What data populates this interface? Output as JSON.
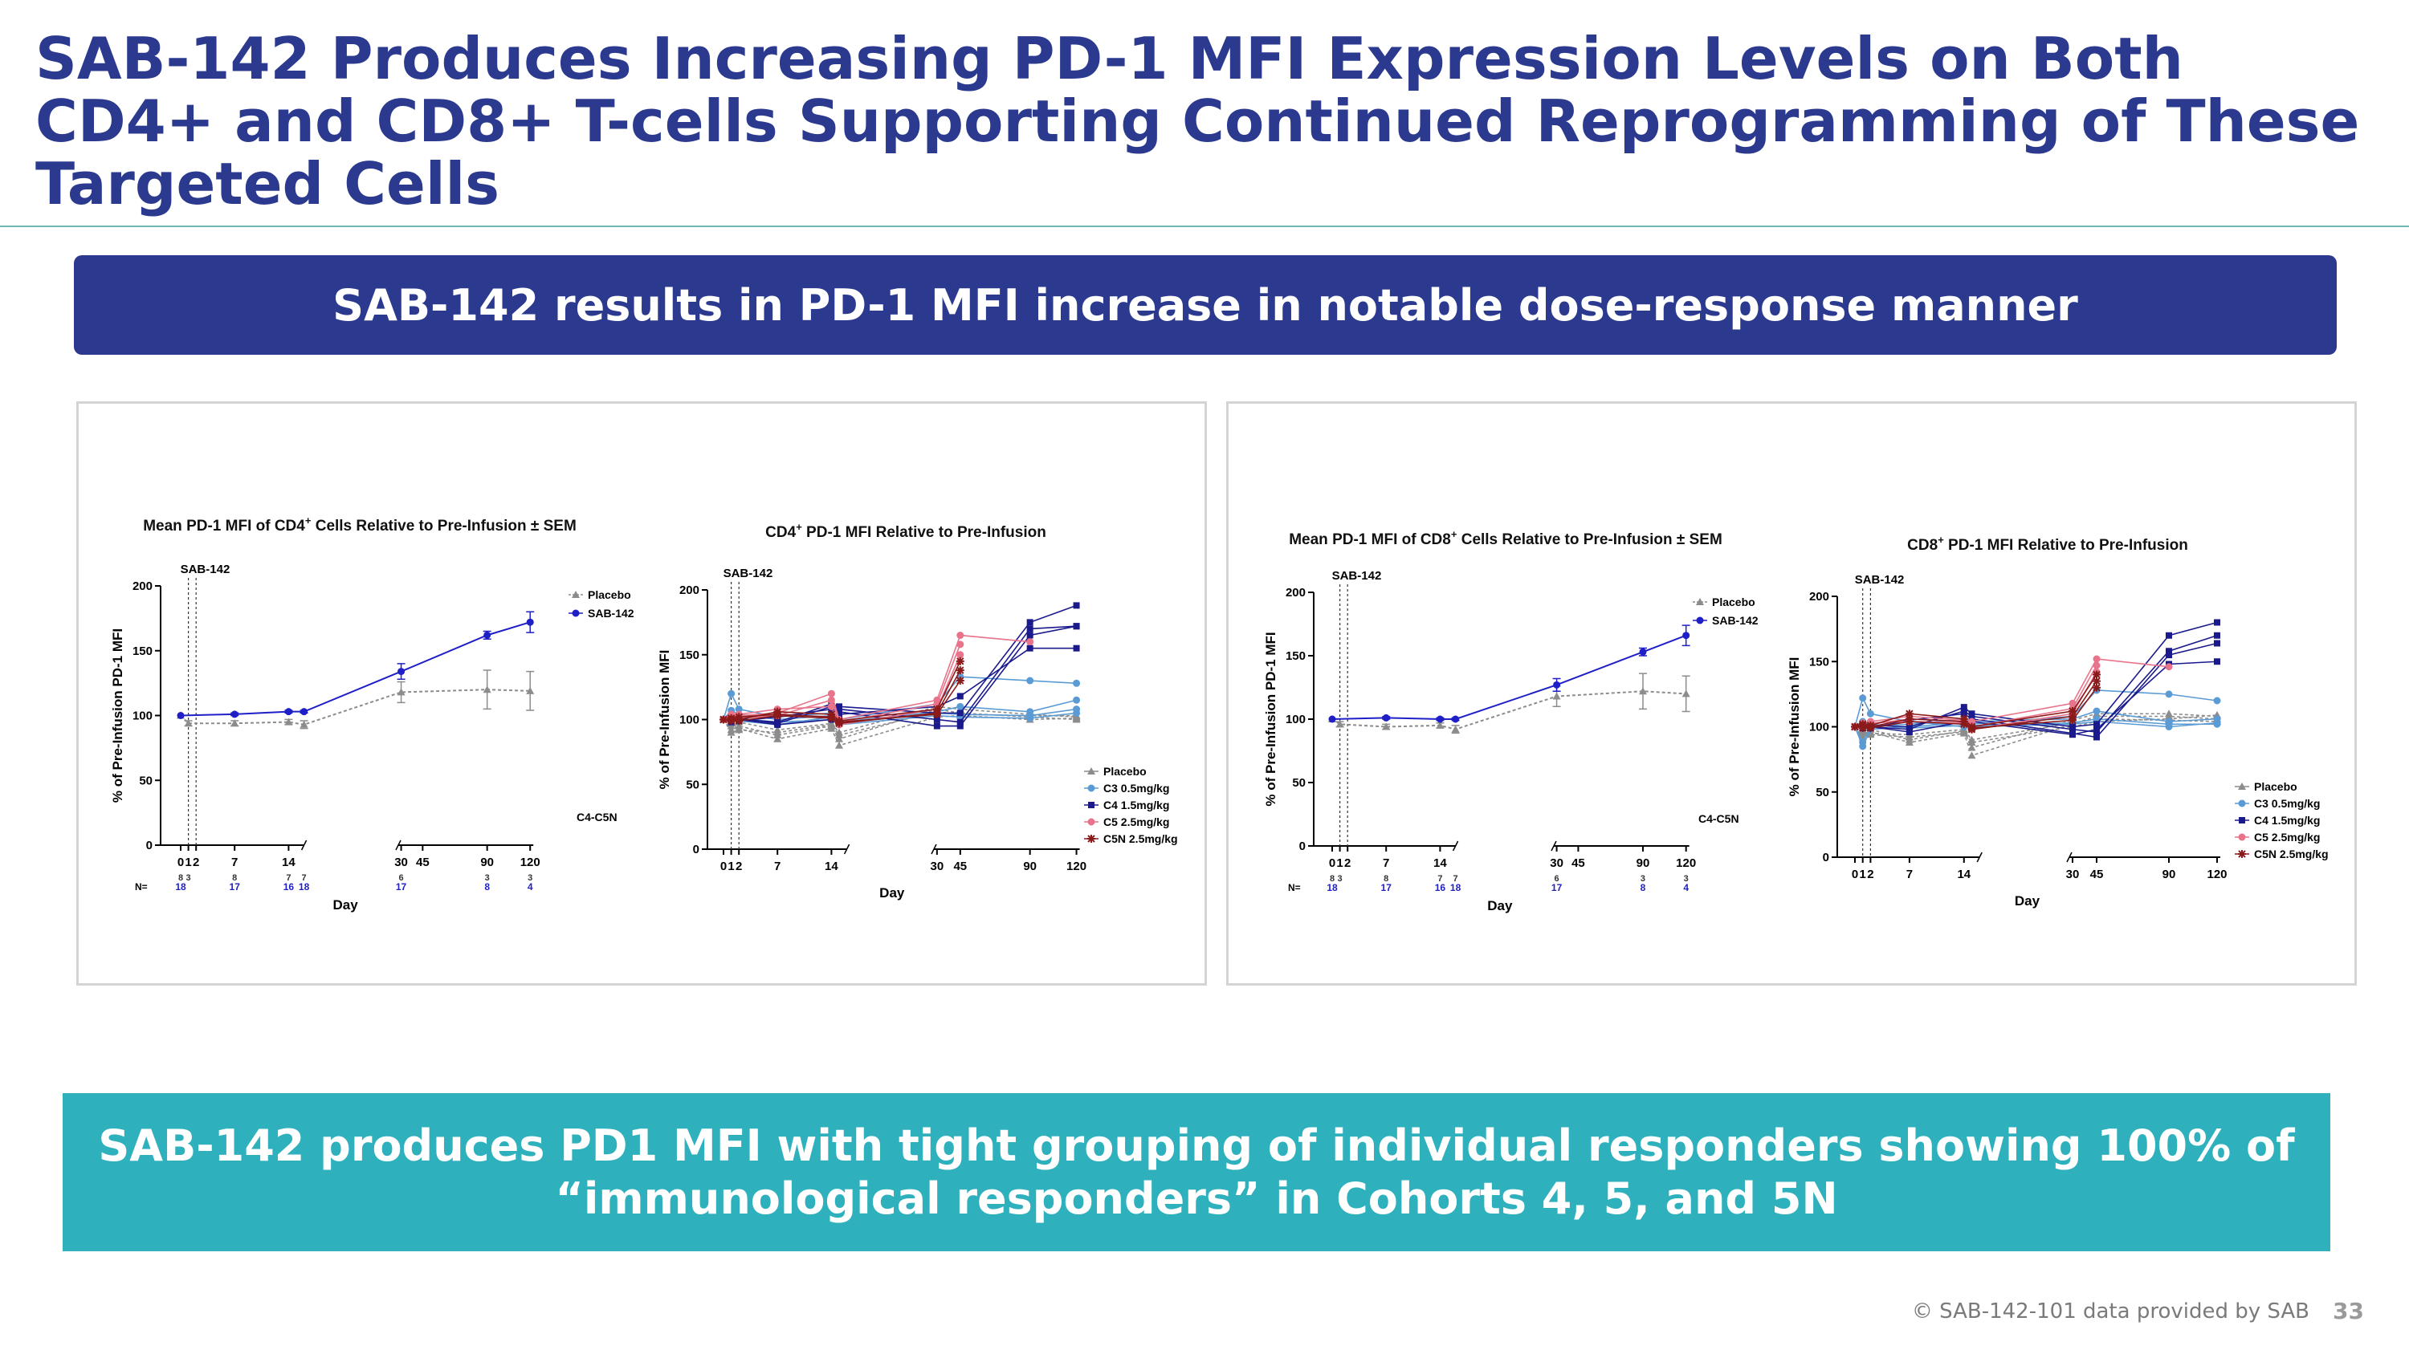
{
  "page": {
    "title": "SAB-142 Produces Increasing PD-1 MFI Expression Levels on Both CD4+ and CD8+ T-cells Supporting Continued Reprogramming of These Targeted Cells",
    "banner_top": "SAB-142 results in PD-1 MFI increase in notable dose-response manner",
    "banner_bottom_line1": "SAB-142 produces PD1 MFI with tight grouping of individual responders showing 100% of",
    "banner_bottom_line2": "“immunological responders” in Cohorts 4, 5, and 5N",
    "footer": "© SAB-142-101 data provided by SAB",
    "page_number": "33"
  },
  "colors": {
    "title": "#2b3a8f",
    "banner_top_bg": "#2b3a8f",
    "banner_bottom_bg": "#2fb0bd",
    "placebo": "#8c8c8c",
    "sab142": "#1f1fc8",
    "c3": "#5b9bd5",
    "c4": "#1a1a8c",
    "c5": "#e8738a",
    "c5n": "#8b1a1a"
  },
  "chart_data": [
    {
      "id": "cd4-mean",
      "type": "line",
      "title": "Mean PD-1 MFI of CD4",
      "title_sup": "+",
      "title_suffix": " Cells Relative to Pre-Infusion ± SEM",
      "xlabel": "Day",
      "ylabel": "% of Pre-Infusion PD-1 MFI",
      "ylim": [
        0,
        200
      ],
      "yticks": [
        0,
        50,
        100,
        150,
        200
      ],
      "x_ticks": [
        0,
        1,
        2,
        7,
        14,
        30,
        45,
        90,
        120
      ],
      "dosing_label": "SAB-142",
      "annotation": "C4-C5N",
      "n_label": "N=",
      "n_placebo": [
        "8",
        "3",
        "8",
        "7",
        "7",
        "6",
        "3",
        "3"
      ],
      "n_sab": [
        "18",
        "17",
        "16",
        "18",
        "17",
        "8",
        "4"
      ],
      "series": [
        {
          "name": "Placebo",
          "color": "#8c8c8c",
          "dashed": true,
          "marker": "triangle",
          "x": [
            0,
            1,
            7,
            14,
            16,
            30,
            90,
            120
          ],
          "y": [
            100,
            94,
            94,
            95,
            93,
            118,
            120,
            119
          ],
          "err": [
            0,
            2,
            2,
            2,
            3,
            8,
            15,
            15
          ]
        },
        {
          "name": "SAB-142",
          "color": "#1f1fc8",
          "dashed": false,
          "marker": "circle",
          "x": [
            0,
            7,
            14,
            16,
            30,
            90,
            120
          ],
          "y": [
            100,
            101,
            103,
            103,
            134,
            162,
            172
          ],
          "err": [
            0,
            1,
            1,
            1,
            6,
            3,
            8
          ]
        }
      ]
    },
    {
      "id": "cd4-individual",
      "type": "line",
      "title": "CD4",
      "title_sup": "+",
      "title_suffix": " PD-1 MFI Relative to Pre-Infusion",
      "xlabel": "Day",
      "ylabel": "% of Pre-Infusion MFI",
      "ylim": [
        0,
        200
      ],
      "yticks": [
        0,
        50,
        100,
        150,
        200
      ],
      "x_ticks": [
        0,
        1,
        2,
        7,
        14,
        30,
        45,
        90,
        120
      ],
      "dosing_label": "SAB-142",
      "legend": [
        {
          "name": "Placebo",
          "color": "#8c8c8c",
          "marker": "triangle"
        },
        {
          "name": "C3 0.5mg/kg",
          "color": "#5b9bd5",
          "marker": "circle"
        },
        {
          "name": "C4 1.5mg/kg",
          "color": "#1a1a8c",
          "marker": "square"
        },
        {
          "name": "C5 2.5mg/kg",
          "color": "#e8738a",
          "marker": "circle"
        },
        {
          "name": "C5N 2.5mg/kg",
          "color": "#8b1a1a",
          "marker": "star"
        }
      ],
      "days": [
        0,
        1,
        2,
        7,
        14,
        15,
        30,
        31,
        45,
        90,
        120
      ],
      "groups": [
        {
          "name": "Placebo",
          "color": "#8c8c8c",
          "dashed": true,
          "lines": [
            [
              100,
              92,
              95,
              88,
              95,
              85,
              108,
              null,
              105,
              102,
              100
            ],
            [
              100,
              95,
              98,
              92,
              97,
              90,
              110,
              null,
              108,
              104,
              102
            ],
            [
              100,
              97,
              93,
              85,
              93,
              80,
              102,
              null,
              103,
              100,
              101
            ],
            [
              100,
              90,
              92,
              90,
              96,
              88,
              106,
              null,
              104,
              103,
              103
            ]
          ]
        },
        {
          "name": "C3 0.5mg/kg",
          "color": "#5b9bd5",
          "dashed": false,
          "lines": [
            [
              100,
              120,
              108,
              102,
              105,
              100,
              112,
              null,
              133,
              130,
              128
            ],
            [
              100,
              107,
              104,
              100,
              103,
              98,
              106,
              null,
              110,
              106,
              115
            ],
            [
              100,
              103,
              99,
              96,
              102,
              97,
              105,
              null,
              104,
              103,
              108
            ],
            [
              100,
              98,
              101,
              98,
              100,
              96,
              103,
              null,
              102,
              101,
              105
            ]
          ]
        },
        {
          "name": "C4 1.5mg/kg",
          "color": "#1a1a8c",
          "dashed": false,
          "lines": [
            [
              100,
              102,
              100,
              98,
              112,
              110,
              105,
              null,
              105,
              175,
              188
            ],
            [
              100,
              99,
              101,
              97,
              110,
              108,
              100,
              null,
              98,
              170,
              172
            ],
            [
              100,
              101,
              99,
              102,
              108,
              106,
              95,
              null,
              95,
              165,
              172
            ],
            [
              100,
              98,
              100,
              96,
              100,
              104,
              110,
              null,
              118,
              155,
              155
            ]
          ]
        },
        {
          "name": "C5 2.5mg/kg",
          "color": "#e8738a",
          "dashed": false,
          "lines": [
            [
              100,
              104,
              103,
              105,
              120,
              100,
              115,
              null,
              165,
              160,
              null
            ],
            [
              100,
              102,
              101,
              103,
              115,
              98,
              112,
              null,
              158,
              null,
              null
            ],
            [
              100,
              101,
              104,
              108,
              110,
              96,
              108,
              null,
              150,
              null,
              null
            ]
          ]
        },
        {
          "name": "C5N 2.5mg/kg",
          "color": "#8b1a1a",
          "dashed": false,
          "lines": [
            [
              100,
              101,
              100,
              106,
              104,
              99,
              108,
              null,
              145,
              null,
              null
            ],
            [
              100,
              99,
              102,
              104,
              102,
              97,
              105,
              null,
              138,
              null,
              null
            ],
            [
              100,
              100,
              99,
              103,
              101,
              98,
              104,
              null,
              130,
              null,
              null
            ]
          ]
        }
      ]
    },
    {
      "id": "cd8-mean",
      "type": "line",
      "title": "Mean PD-1 MFI of CD8",
      "title_sup": "+",
      "title_suffix": " Cells Relative to Pre-Infusion ± SEM",
      "xlabel": "Day",
      "ylabel": "% of Pre-Infusion PD-1 MFI",
      "ylim": [
        0,
        200
      ],
      "yticks": [
        0,
        50,
        100,
        150,
        200
      ],
      "x_ticks": [
        0,
        1,
        2,
        7,
        14,
        30,
        45,
        90,
        120
      ],
      "dosing_label": "SAB-142",
      "annotation": "C4-C5N",
      "n_label": "N=",
      "n_placebo": [
        "8",
        "3",
        "8",
        "7",
        "7",
        "6",
        "3",
        "3"
      ],
      "n_sab": [
        "18",
        "17",
        "16",
        "18",
        "17",
        "8",
        "4"
      ],
      "series": [
        {
          "name": "Placebo",
          "color": "#8c8c8c",
          "dashed": true,
          "marker": "triangle",
          "x": [
            0,
            1,
            7,
            14,
            16,
            30,
            90,
            120
          ],
          "y": [
            100,
            96,
            94,
            95,
            92,
            118,
            122,
            120
          ],
          "err": [
            0,
            2,
            2,
            2,
            3,
            8,
            14,
            14
          ]
        },
        {
          "name": "SAB-142",
          "color": "#1f1fc8",
          "dashed": false,
          "marker": "circle",
          "x": [
            0,
            7,
            14,
            16,
            30,
            90,
            120
          ],
          "y": [
            100,
            101,
            100,
            100,
            127,
            153,
            166
          ],
          "err": [
            0,
            1,
            1,
            1,
            5,
            3,
            8
          ]
        }
      ]
    },
    {
      "id": "cd8-individual",
      "type": "line",
      "title": "CD8",
      "title_sup": "+",
      "title_suffix": " PD-1 MFI Relative to Pre-Infusion",
      "xlabel": "Day",
      "ylabel": "% of Pre-Infusion MFI",
      "ylim": [
        0,
        200
      ],
      "yticks": [
        0,
        50,
        100,
        150,
        200
      ],
      "x_ticks": [
        0,
        1,
        2,
        7,
        14,
        30,
        45,
        90,
        120
      ],
      "dosing_label": "SAB-142",
      "legend": [
        {
          "name": "Placebo",
          "color": "#8c8c8c",
          "marker": "triangle"
        },
        {
          "name": "C3 0.5mg/kg",
          "color": "#5b9bd5",
          "marker": "circle"
        },
        {
          "name": "C4 1.5mg/kg",
          "color": "#1a1a8c",
          "marker": "square"
        },
        {
          "name": "C5 2.5mg/kg",
          "color": "#e8738a",
          "marker": "circle"
        },
        {
          "name": "C5N 2.5mg/kg",
          "color": "#8b1a1a",
          "marker": "star"
        }
      ],
      "days": [
        0,
        1,
        2,
        7,
        14,
        15,
        30,
        31,
        45,
        90,
        120
      ],
      "groups": [
        {
          "name": "Placebo",
          "color": "#8c8c8c",
          "dashed": true,
          "lines": [
            [
              100,
              95,
              96,
              88,
              95,
              78,
              102,
              null,
              108,
              108,
              106
            ],
            [
              100,
              97,
              98,
              90,
              97,
              84,
              105,
              null,
              110,
              110,
              108
            ],
            [
              100,
              92,
              94,
              92,
              96,
              88,
              100,
              null,
              104,
              106,
              109
            ],
            [
              100,
              96,
              95,
              94,
              98,
              90,
              103,
              null,
              106,
              105,
              104
            ]
          ]
        },
        {
          "name": "C3 0.5mg/kg",
          "color": "#5b9bd5",
          "dashed": false,
          "lines": [
            [
              100,
              122,
              110,
              104,
              100,
              102,
              108,
              null,
              128,
              125,
              120
            ],
            [
              100,
              88,
              100,
              102,
              106,
              104,
              106,
              null,
              112,
              104,
              106
            ],
            [
              100,
              85,
              98,
              100,
              103,
              101,
              103,
              null,
              106,
              102,
              102
            ],
            [
              100,
              104,
              102,
              99,
              101,
              100,
              102,
              null,
              104,
              100,
              103
            ]
          ]
        },
        {
          "name": "C4 1.5mg/kg",
          "color": "#1a1a8c",
          "dashed": false,
          "lines": [
            [
              100,
              101,
              100,
              98,
              115,
              110,
              100,
              null,
              102,
              170,
              180
            ],
            [
              100,
              99,
              101,
              100,
              112,
              108,
              98,
              null,
              96,
              158,
              170
            ],
            [
              100,
              102,
              99,
              105,
              110,
              106,
              95,
              null,
              92,
              155,
              164
            ],
            [
              100,
              100,
              100,
              96,
              104,
              104,
              94,
              null,
              98,
              148,
              150
            ]
          ]
        },
        {
          "name": "C5 2.5mg/kg",
          "color": "#e8738a",
          "dashed": false,
          "lines": [
            [
              100,
              103,
              104,
              108,
              105,
              104,
              118,
              null,
              152,
              146,
              null
            ],
            [
              100,
              101,
              102,
              106,
              104,
              100,
              114,
              null,
              147,
              null,
              null
            ],
            [
              100,
              100,
              103,
              104,
              103,
              98,
              110,
              null,
              142,
              null,
              null
            ]
          ]
        },
        {
          "name": "C5N 2.5mg/kg",
          "color": "#8b1a1a",
          "dashed": false,
          "lines": [
            [
              100,
              102,
              101,
              110,
              106,
              100,
              112,
              null,
              140,
              null,
              null
            ],
            [
              100,
              99,
              100,
              106,
              104,
              98,
              108,
              null,
              135,
              null,
              null
            ],
            [
              100,
              101,
              99,
              104,
              102,
              99,
              105,
              null,
              130,
              null,
              null
            ]
          ]
        }
      ]
    }
  ]
}
